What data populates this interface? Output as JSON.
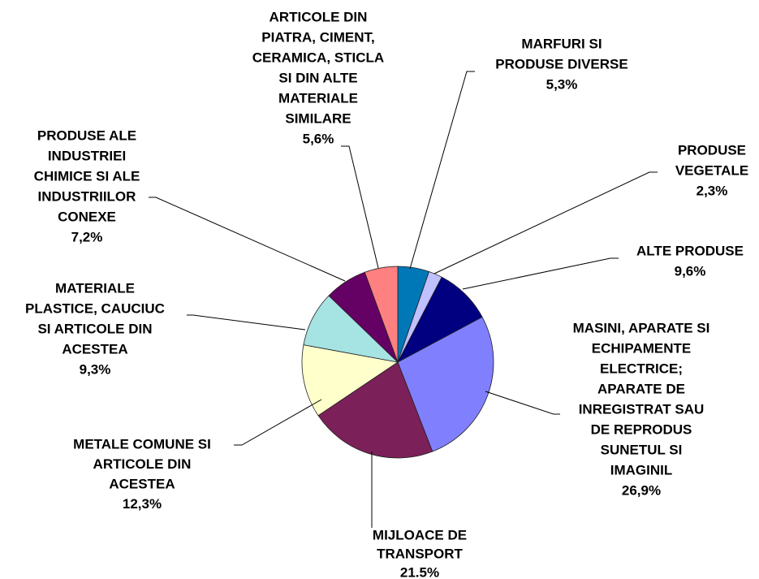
{
  "chart_data": {
    "type": "pie",
    "categories": [
      [
        "MARFURI SI",
        "PRODUSE DIVERSE"
      ],
      [
        "PRODUSE",
        "VEGETALE"
      ],
      [
        "ALTE PRODUSE"
      ],
      [
        "MASINI, APARATE SI",
        "ECHIPAMENTE",
        "ELECTRICE;",
        "APARATE DE",
        "INREGISTRAT SAU",
        "DE REPRODUS",
        "SUNETUL SI",
        "IMAGINIL"
      ],
      [
        "MIJLOACE DE",
        "TRANSPORT"
      ],
      [
        "METALE COMUNE SI",
        "ARTICOLE DIN",
        "ACESTEA"
      ],
      [
        "MATERIALE",
        "PLASTICE, CAUCIUC",
        "SI ARTICOLE DIN",
        "ACESTEA"
      ],
      [
        "PRODUSE ALE",
        "INDUSTRIEI",
        "CHIMICE SI ALE",
        "INDUSTRIILOR",
        "CONEXE"
      ],
      [
        "ARTICOLE DIN",
        "PIATRA, CIMENT,",
        "CERAMICA, STICLA",
        "SI DIN ALTE",
        "MATERIALE",
        "SIMILARE"
      ]
    ],
    "values": [
      5.3,
      2.3,
      9.6,
      26.9,
      21.5,
      12.3,
      9.3,
      7.2,
      5.6
    ],
    "value_labels": [
      "5,3%",
      "2,3%",
      "9,6%",
      "26,9%",
      "21.5%",
      "12,3%",
      "9,3%",
      "7,2%",
      "5,6%"
    ],
    "colors": [
      "#0077B6",
      "#C0C0FF",
      "#000080",
      "#8080FF",
      "#7B2058",
      "#FFFFCC",
      "#A6E3E3",
      "#650065",
      "#FF8080"
    ]
  }
}
